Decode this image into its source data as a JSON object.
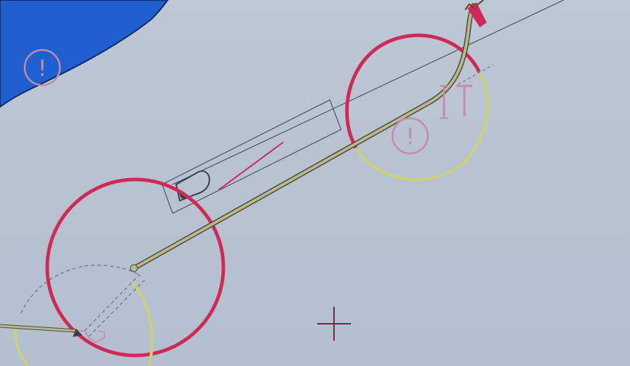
{
  "canvas": {
    "background_color": "#b9c3d2",
    "land_color": "#1f5fd0",
    "land_outline_color": "#0b2a6a",
    "route_color": "#b9b88e",
    "route_outline_color": "#4a4a36",
    "turn_circle_color": "#cf2a55",
    "turn_arc_color": "#c9d27a",
    "guide_line_color": "#3a3f4a",
    "dashed_line_color": "#59606c",
    "warning_color": "#c48aa6",
    "cursor_color": "#6b2b3a",
    "heading_marker_color": "#d0285a"
  },
  "icons": {
    "warning": "warning-circle-icon",
    "vessel": "vessel-outline-icon",
    "waypoint": "waypoint-icon",
    "cursor": "crosshair-cursor-icon",
    "label_marker": "label-marker-icon"
  },
  "warnings": [
    {
      "glyph": "!"
    },
    {
      "glyph": "!"
    }
  ],
  "labels": {
    "waypoint_marker": "I T"
  }
}
